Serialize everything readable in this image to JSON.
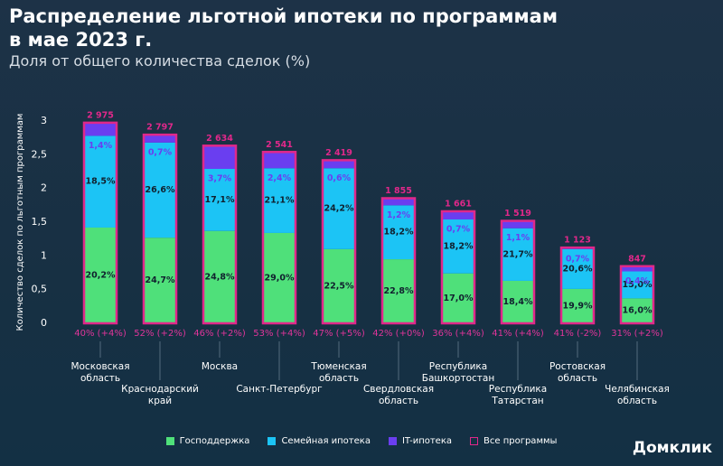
{
  "chart_data": {
    "type": "bar",
    "stacked": true,
    "title": [
      "Распределение льготной ипотеки по программам",
      "в мае 2023 г."
    ],
    "subtitle": "Доля от общего количества сделок (%)",
    "y_label": "Количество сделок по льготным программам",
    "categories": [
      "Московская область",
      "Краснодарский край",
      "Москва",
      "Санкт-Петербург",
      "Тюменская область",
      "Свердловская область",
      "Республика Башкортостан",
      "Республика Татарстан",
      "Ростовская область",
      "Челябинская область"
    ],
    "series": [
      {
        "name": "Господдержка",
        "color": "#4fe07a",
        "values": [
          1.42,
          1.27,
          1.37,
          1.34,
          1.1,
          0.95,
          0.74,
          0.63,
          0.51,
          0.37
        ],
        "share_labels": [
          "20,2%",
          "24,7%",
          "24,8%",
          "29,0%",
          "22,5%",
          "22,8%",
          "17,0%",
          "18,4%",
          "19,9%",
          "16,0%"
        ]
      },
      {
        "name": "Семейная ипотека",
        "color": "#1cc4f5",
        "values": [
          1.36,
          1.41,
          0.92,
          0.96,
          1.2,
          0.8,
          0.8,
          0.78,
          0.59,
          0.4
        ],
        "share_labels": [
          "18,5%",
          "26,6%",
          "17,1%",
          "21,1%",
          "24,2%",
          "18,2%",
          "18,2%",
          "21,7%",
          "20,6%",
          "15,0%"
        ]
      },
      {
        "name": "IT-ипотека",
        "color": "#6a3ef0",
        "values": [
          0.19,
          0.12,
          0.34,
          0.24,
          0.12,
          0.1,
          0.12,
          0.11,
          0.02,
          0.07
        ],
        "share_labels": [
          "1,4%",
          "0,7%",
          "3,7%",
          "2,4%",
          "0,6%",
          "1,2%",
          "0,7%",
          "1,1%",
          "0,7%",
          "0,4%"
        ]
      }
    ],
    "totals": {
      "name": "Все программы",
      "color": "#e0288a",
      "values": [
        2.975,
        2.797,
        2.634,
        2.541,
        2.419,
        1.855,
        1.661,
        1.519,
        1.123,
        0.847
      ],
      "value_labels": [
        "2 975",
        "2 797",
        "2 634",
        "2 541",
        "2 419",
        "1 855",
        "1 661",
        "1 519",
        "1 123",
        "847"
      ]
    },
    "bottom_labels": [
      "40% (+4%)",
      "52% (+2%)",
      "46% (+2%)",
      "53% (+4%)",
      "47% (+5%)",
      "42% (+0%)",
      "36% (+4%)",
      "41% (+4%)",
      "41% (-2%)",
      "31% (+2%)"
    ],
    "ylim": [
      0,
      3
    ],
    "yticks": [
      0,
      {
        "value": 0.5,
        "label": "0,5"
      },
      1,
      {
        "value": 1.5,
        "label": "1,5"
      },
      2,
      {
        "value": 2.5,
        "label": "2,5"
      },
      3
    ],
    "brand": "Домклик"
  }
}
